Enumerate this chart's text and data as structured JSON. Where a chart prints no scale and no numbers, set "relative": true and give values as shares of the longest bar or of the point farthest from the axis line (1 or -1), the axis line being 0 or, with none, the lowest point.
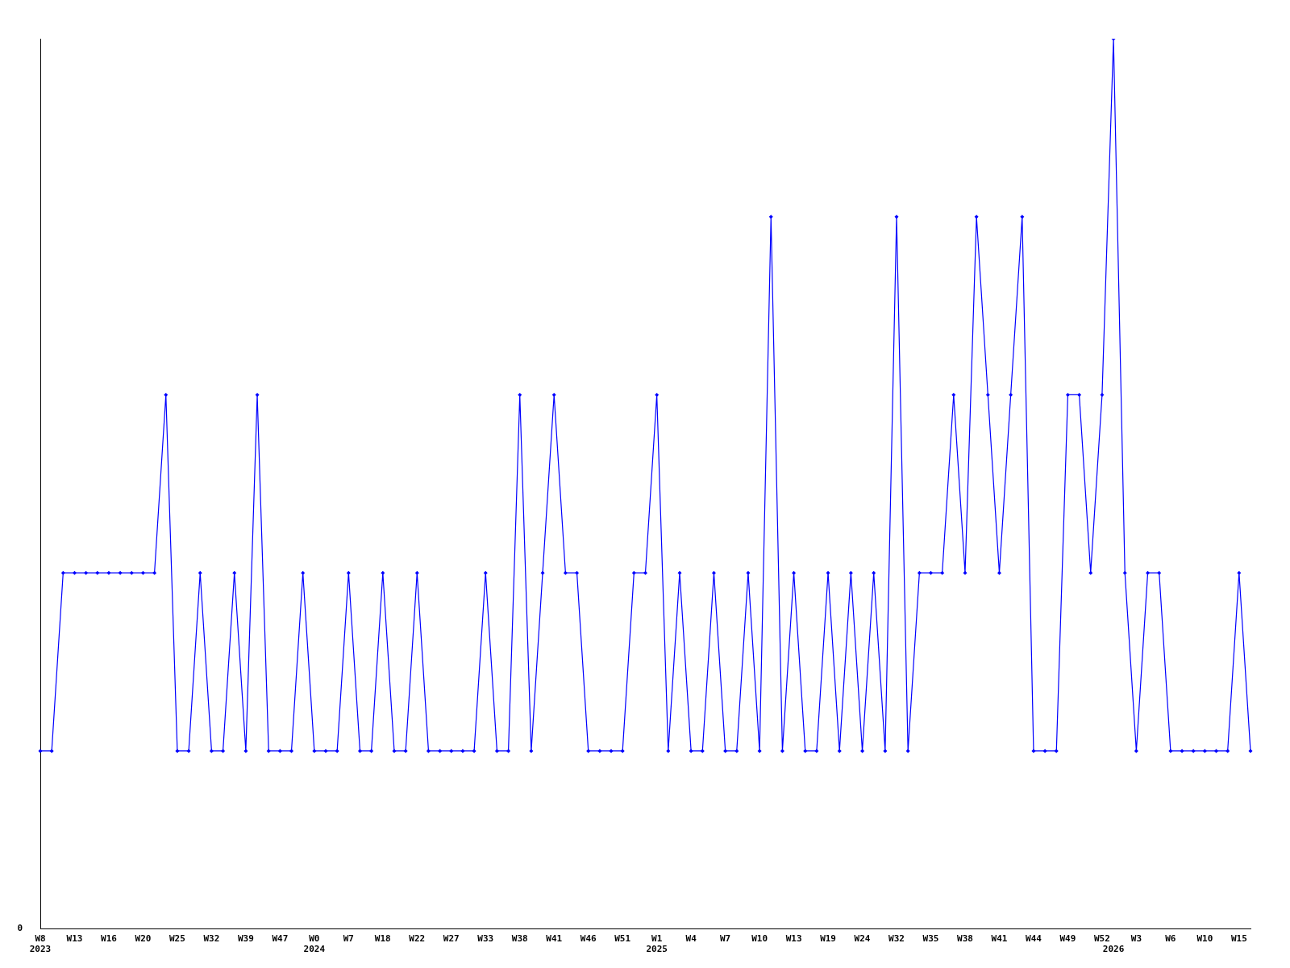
{
  "chart_data": {
    "type": "line",
    "relative": true,
    "annotations": [
      "0"
    ],
    "grid": false,
    "legend": false,
    "marker": "diamond",
    "line_style": "solid",
    "categories": [
      "W8\n2023",
      null,
      null,
      "W13",
      null,
      null,
      "W16",
      null,
      null,
      "W20",
      null,
      null,
      "W25",
      null,
      null,
      "W32",
      null,
      null,
      "W39",
      null,
      null,
      "W47",
      null,
      null,
      "W0\n2024",
      null,
      null,
      "W7",
      null,
      null,
      "W18",
      null,
      null,
      "W22",
      null,
      null,
      "W27",
      null,
      null,
      "W33",
      null,
      null,
      "W38",
      null,
      null,
      "W41",
      null,
      null,
      "W46",
      null,
      null,
      "W51",
      null,
      null,
      "W1\n2025",
      null,
      null,
      "W4",
      null,
      null,
      "W7",
      null,
      null,
      "W10",
      null,
      null,
      "W13",
      null,
      null,
      "W19",
      null,
      null,
      "W24",
      null,
      null,
      "W32",
      null,
      null,
      "W35",
      null,
      null,
      "W38",
      null,
      null,
      "W41",
      null,
      null,
      "W44",
      null,
      null,
      "W49",
      null,
      null,
      "W52",
      "\n2026",
      null,
      "W3",
      null,
      null,
      "W6",
      null,
      null,
      "W10",
      null,
      null,
      "W15",
      null
    ],
    "series": [
      {
        "color": "#0000ff",
        "values": [
          0.2,
          0.2,
          0.4,
          0.4,
          0.4,
          0.4,
          0.4,
          0.4,
          0.4,
          0.4,
          0.4,
          0.6,
          0.2,
          0.2,
          0.4,
          0.2,
          0.2,
          0.4,
          0.2,
          0.6,
          0.2,
          0.2,
          0.2,
          0.4,
          0.2,
          0.2,
          0.2,
          0.4,
          0.2,
          0.2,
          0.4,
          0.2,
          0.2,
          0.4,
          0.2,
          0.2,
          0.2,
          0.2,
          0.2,
          0.4,
          0.2,
          0.2,
          0.6,
          0.2,
          0.4,
          0.6,
          0.4,
          0.4,
          0.2,
          0.2,
          0.2,
          0.2,
          0.4,
          0.4,
          0.6,
          0.2,
          0.4,
          0.2,
          0.2,
          0.4,
          0.2,
          0.2,
          0.4,
          0.2,
          0.8,
          0.2,
          0.4,
          0.2,
          0.2,
          0.4,
          0.2,
          0.4,
          0.2,
          0.4,
          0.2,
          0.8,
          0.2,
          0.4,
          0.4,
          0.4,
          0.6,
          0.4,
          0.8,
          0.6,
          0.4,
          0.6,
          0.8,
          0.2,
          0.2,
          0.2,
          0.6,
          0.6,
          0.4,
          0.6,
          1,
          0.4,
          0.2,
          0.4,
          0.4,
          0.2,
          0.2,
          0.2,
          0.2,
          0.2,
          0.2,
          0.4,
          0.2
        ]
      }
    ]
  }
}
